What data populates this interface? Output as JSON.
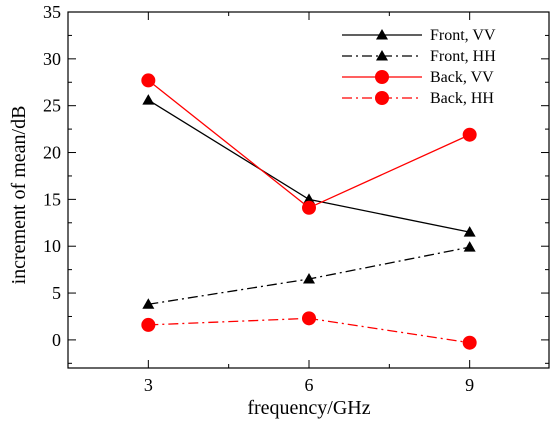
{
  "chart_data": {
    "type": "line",
    "title": "",
    "xlabel": "frequency/GHz",
    "ylabel": "increment of mean/dB",
    "x": [
      3,
      6,
      9
    ],
    "xlim": [
      1.5,
      10.5
    ],
    "ylim": [
      -3,
      35
    ],
    "xticks": [
      3,
      6,
      9
    ],
    "yticks": [
      0,
      5,
      10,
      15,
      20,
      25,
      30,
      35
    ],
    "grid": false,
    "legend_position": "top-right",
    "series": [
      {
        "name": "Front, VV",
        "values": [
          25.6,
          15.0,
          11.5
        ],
        "color": "#000000",
        "dash": "solid",
        "marker": "triangle"
      },
      {
        "name": "Front, HH",
        "values": [
          3.8,
          6.5,
          9.9
        ],
        "color": "#000000",
        "dash": "dashdot",
        "marker": "triangle"
      },
      {
        "name": "Back, VV",
        "values": [
          27.7,
          14.1,
          21.9
        ],
        "color": "#ff0000",
        "dash": "solid",
        "marker": "circle"
      },
      {
        "name": "Back, HH",
        "values": [
          1.6,
          2.3,
          -0.3
        ],
        "color": "#ff0000",
        "dash": "dashdot",
        "marker": "circle"
      }
    ]
  }
}
